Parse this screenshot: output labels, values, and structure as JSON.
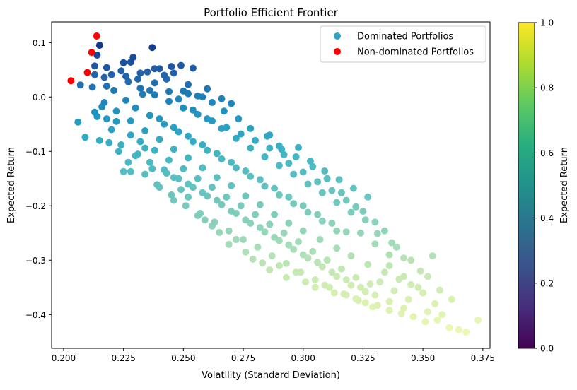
{
  "chart_data": {
    "type": "scatter",
    "title": "Portfolio Efficient Frontier",
    "xlabel": "Volatility (Standard Deviation)",
    "ylabel": "Expected Return",
    "xlim": [
      0.195,
      0.378
    ],
    "ylim": [
      -0.462,
      0.138
    ],
    "x_ticks": [
      0.2,
      0.225,
      0.25,
      0.275,
      0.3,
      0.325,
      0.35,
      0.375
    ],
    "x_tick_labels": [
      "0.200",
      "0.225",
      "0.250",
      "0.275",
      "0.300",
      "0.325",
      "0.350",
      "0.375"
    ],
    "y_ticks": [
      -0.4,
      -0.3,
      -0.2,
      -0.1,
      0.0,
      0.1
    ],
    "y_tick_labels": [
      "−0.4",
      "−0.3",
      "−0.2",
      "−0.1",
      "0.0",
      "0.1"
    ],
    "grid": false,
    "legend_placement": "top-right",
    "series": [
      {
        "name": "Dominated Portfolios",
        "legend_color": "#30a2c2",
        "colormap": "YlGnBu_r",
        "points": [
          [
            0.237,
            0.091
          ],
          [
            0.215,
            0.095
          ],
          [
            0.214,
            0.077
          ],
          [
            0.229,
            0.073
          ],
          [
            0.228,
            0.064
          ],
          [
            0.225,
            0.063
          ],
          [
            0.213,
            0.057
          ],
          [
            0.218,
            0.054
          ],
          [
            0.249,
            0.058
          ],
          [
            0.245,
            0.056
          ],
          [
            0.254,
            0.053
          ],
          [
            0.238,
            0.052
          ],
          [
            0.24,
            0.052
          ],
          [
            0.235,
            0.046
          ],
          [
            0.246,
            0.044
          ],
          [
            0.213,
            0.041
          ],
          [
            0.22,
            0.041
          ],
          [
            0.226,
            0.038
          ],
          [
            0.217,
            0.036
          ],
          [
            0.231,
            0.033
          ],
          [
            0.243,
            0.033
          ],
          [
            0.207,
            0.022
          ],
          [
            0.212,
            0.018
          ],
          [
            0.238,
            0.026
          ],
          [
            0.252,
            0.023
          ],
          [
            0.25,
            0.011
          ],
          [
            0.26,
            0.015
          ],
          [
            0.233,
            0.005
          ],
          [
            0.266,
            -0.003
          ],
          [
            0.27,
            -0.012
          ],
          [
            0.206,
            -0.046
          ],
          [
            0.209,
            -0.074
          ],
          [
            0.213,
            -0.028
          ],
          [
            0.214,
            -0.036
          ],
          [
            0.215,
            -0.08
          ],
          [
            0.218,
            -0.04
          ],
          [
            0.222,
            -0.045
          ],
          [
            0.223,
            -0.1
          ],
          [
            0.225,
            -0.137
          ],
          [
            0.227,
            -0.12
          ],
          [
            0.228,
            -0.137
          ],
          [
            0.231,
            -0.105
          ],
          [
            0.234,
            -0.142
          ],
          [
            0.237,
            -0.132
          ],
          [
            0.239,
            -0.161
          ],
          [
            0.243,
            -0.14
          ],
          [
            0.246,
            -0.19
          ],
          [
            0.249,
            -0.17
          ],
          [
            0.252,
            -0.184
          ],
          [
            0.256,
            -0.218
          ],
          [
            0.259,
            -0.226
          ],
          [
            0.262,
            -0.237
          ],
          [
            0.265,
            -0.249
          ],
          [
            0.269,
            -0.271
          ],
          [
            0.272,
            -0.262
          ],
          [
            0.276,
            -0.285
          ],
          [
            0.279,
            -0.298
          ],
          [
            0.283,
            -0.305
          ],
          [
            0.286,
            -0.318
          ],
          [
            0.29,
            -0.31
          ],
          [
            0.293,
            -0.332
          ],
          [
            0.297,
            -0.322
          ],
          [
            0.301,
            -0.34
          ],
          [
            0.305,
            -0.35
          ],
          [
            0.309,
            -0.346
          ],
          [
            0.313,
            -0.36
          ],
          [
            0.318,
            -0.364
          ],
          [
            0.322,
            -0.371
          ],
          [
            0.326,
            -0.378
          ],
          [
            0.331,
            -0.383
          ],
          [
            0.336,
            -0.392
          ],
          [
            0.341,
            -0.398
          ],
          [
            0.346,
            -0.404
          ],
          [
            0.351,
            -0.413
          ],
          [
            0.356,
            -0.41
          ],
          [
            0.361,
            -0.424
          ],
          [
            0.365,
            -0.428
          ],
          [
            0.368,
            -0.432
          ],
          [
            0.373,
            -0.41
          ],
          [
            0.355,
            -0.38
          ],
          [
            0.35,
            -0.36
          ],
          [
            0.345,
            -0.345
          ],
          [
            0.34,
            -0.335
          ],
          [
            0.334,
            -0.322
          ],
          [
            0.327,
            -0.308
          ],
          [
            0.32,
            -0.292
          ],
          [
            0.314,
            -0.278
          ],
          [
            0.307,
            -0.262
          ],
          [
            0.3,
            -0.246
          ],
          [
            0.294,
            -0.232
          ],
          [
            0.288,
            -0.216
          ],
          [
            0.282,
            -0.198
          ],
          [
            0.276,
            -0.182
          ],
          [
            0.27,
            -0.163
          ],
          [
            0.264,
            -0.148
          ],
          [
            0.258,
            -0.13
          ],
          [
            0.252,
            -0.112
          ],
          [
            0.246,
            -0.096
          ],
          [
            0.24,
            -0.078
          ],
          [
            0.234,
            -0.062
          ],
          [
            0.228,
            -0.044
          ],
          [
            0.222,
            -0.026
          ],
          [
            0.217,
            -0.01
          ],
          [
            0.221,
            0.012
          ],
          [
            0.227,
            0.028
          ],
          [
            0.232,
            0.016
          ],
          [
            0.238,
            0.004
          ],
          [
            0.244,
            -0.008
          ],
          [
            0.25,
            -0.02
          ],
          [
            0.256,
            -0.032
          ],
          [
            0.262,
            -0.044
          ],
          [
            0.268,
            -0.056
          ],
          [
            0.274,
            -0.068
          ],
          [
            0.28,
            -0.08
          ],
          [
            0.286,
            -0.094
          ],
          [
            0.292,
            -0.106
          ],
          [
            0.298,
            -0.093
          ],
          [
            0.304,
            -0.128
          ],
          [
            0.31,
            -0.15
          ],
          [
            0.316,
            -0.176
          ],
          [
            0.322,
            -0.202
          ],
          [
            0.326,
            -0.226
          ],
          [
            0.331,
            -0.251
          ],
          [
            0.337,
            -0.268
          ],
          [
            0.342,
            -0.296
          ],
          [
            0.349,
            -0.32
          ],
          [
            0.354,
            -0.292
          ],
          [
            0.246,
            -0.148
          ],
          [
            0.252,
            -0.16
          ],
          [
            0.258,
            -0.176
          ],
          [
            0.264,
            -0.19
          ],
          [
            0.27,
            -0.21
          ],
          [
            0.276,
            -0.226
          ],
          [
            0.282,
            -0.24
          ],
          [
            0.288,
            -0.258
          ],
          [
            0.294,
            -0.272
          ],
          [
            0.3,
            -0.29
          ],
          [
            0.306,
            -0.304
          ],
          [
            0.312,
            -0.322
          ],
          [
            0.318,
            -0.336
          ],
          [
            0.324,
            -0.35
          ],
          [
            0.33,
            -0.364
          ],
          [
            0.336,
            -0.376
          ],
          [
            0.342,
            -0.388
          ],
          [
            0.232,
            -0.082
          ],
          [
            0.238,
            -0.098
          ],
          [
            0.244,
            -0.116
          ],
          [
            0.25,
            -0.132
          ],
          [
            0.256,
            -0.15
          ],
          [
            0.262,
            -0.166
          ],
          [
            0.268,
            -0.184
          ],
          [
            0.274,
            -0.2
          ],
          [
            0.28,
            -0.216
          ],
          [
            0.286,
            -0.234
          ],
          [
            0.292,
            -0.25
          ],
          [
            0.298,
            -0.266
          ],
          [
            0.304,
            -0.284
          ],
          [
            0.31,
            -0.3
          ],
          [
            0.316,
            -0.316
          ],
          [
            0.322,
            -0.332
          ],
          [
            0.328,
            -0.344
          ],
          [
            0.24,
            -0.04
          ],
          [
            0.246,
            -0.056
          ],
          [
            0.252,
            -0.072
          ],
          [
            0.258,
            -0.088
          ],
          [
            0.264,
            -0.104
          ],
          [
            0.27,
            -0.12
          ],
          [
            0.276,
            -0.136
          ],
          [
            0.282,
            -0.152
          ],
          [
            0.288,
            -0.168
          ],
          [
            0.294,
            -0.184
          ],
          [
            0.3,
            -0.2
          ],
          [
            0.306,
            -0.216
          ],
          [
            0.312,
            -0.232
          ],
          [
            0.318,
            -0.248
          ],
          [
            0.248,
            -0.004
          ],
          [
            0.254,
            -0.024
          ],
          [
            0.26,
            -0.04
          ],
          [
            0.266,
            -0.058
          ],
          [
            0.272,
            -0.076
          ],
          [
            0.278,
            -0.094
          ],
          [
            0.284,
            -0.11
          ],
          [
            0.29,
            -0.126
          ],
          [
            0.296,
            -0.142
          ],
          [
            0.302,
            -0.16
          ],
          [
            0.308,
            -0.176
          ],
          [
            0.314,
            -0.194
          ],
          [
            0.32,
            -0.212
          ],
          [
            0.226,
            -0.006
          ],
          [
            0.23,
            -0.02
          ],
          [
            0.236,
            -0.034
          ],
          [
            0.242,
            -0.05
          ],
          [
            0.248,
            -0.064
          ],
          [
            0.254,
            -0.082
          ],
          [
            0.26,
            -0.098
          ],
          [
            0.266,
            -0.114
          ],
          [
            0.272,
            -0.13
          ],
          [
            0.278,
            -0.146
          ],
          [
            0.284,
            -0.164
          ],
          [
            0.29,
            -0.18
          ],
          [
            0.296,
            -0.196
          ],
          [
            0.302,
            -0.212
          ],
          [
            0.308,
            -0.228
          ],
          [
            0.314,
            -0.246
          ],
          [
            0.236,
            -0.12
          ],
          [
            0.242,
            -0.134
          ],
          [
            0.248,
            -0.15
          ],
          [
            0.254,
            -0.166
          ],
          [
            0.26,
            -0.182
          ],
          [
            0.266,
            -0.198
          ],
          [
            0.272,
            -0.214
          ],
          [
            0.278,
            -0.232
          ],
          [
            0.284,
            -0.248
          ],
          [
            0.29,
            -0.264
          ],
          [
            0.296,
            -0.28
          ],
          [
            0.302,
            -0.296
          ],
          [
            0.308,
            -0.312
          ],
          [
            0.314,
            -0.33
          ],
          [
            0.32,
            -0.346
          ],
          [
            0.326,
            -0.358
          ],
          [
            0.29,
            -0.09
          ],
          [
            0.285,
            -0.072
          ],
          [
            0.278,
            -0.058
          ],
          [
            0.273,
            -0.04
          ],
          [
            0.267,
            -0.026
          ],
          [
            0.262,
            -0.01
          ],
          [
            0.256,
            0.002
          ],
          [
            0.294,
            -0.122
          ],
          [
            0.3,
            -0.138
          ],
          [
            0.306,
            -0.156
          ],
          [
            0.312,
            -0.172
          ],
          [
            0.318,
            -0.19
          ],
          [
            0.324,
            -0.25
          ],
          [
            0.33,
            -0.27
          ],
          [
            0.336,
            -0.29
          ],
          [
            0.33,
            -0.23
          ],
          [
            0.336,
            -0.31
          ],
          [
            0.342,
            -0.33
          ],
          [
            0.348,
            -0.35
          ],
          [
            0.352,
            -0.395
          ],
          [
            0.358,
            -0.4
          ],
          [
            0.344,
            -0.372
          ],
          [
            0.338,
            -0.356
          ],
          [
            0.332,
            -0.34
          ],
          [
            0.245,
            -0.18
          ],
          [
            0.24,
            -0.166
          ],
          [
            0.251,
            -0.2
          ],
          [
            0.257,
            -0.214
          ],
          [
            0.263,
            -0.23
          ],
          [
            0.269,
            -0.246
          ],
          [
            0.275,
            -0.262
          ],
          [
            0.281,
            -0.276
          ],
          [
            0.287,
            -0.292
          ],
          [
            0.293,
            -0.306
          ],
          [
            0.299,
            -0.322
          ],
          [
            0.305,
            -0.336
          ],
          [
            0.311,
            -0.35
          ],
          [
            0.317,
            -0.362
          ],
          [
            0.323,
            -0.374
          ],
          [
            0.329,
            -0.386
          ],
          [
            0.228,
            -0.07
          ],
          [
            0.234,
            -0.094
          ],
          [
            0.23,
            -0.108
          ],
          [
            0.224,
            -0.088
          ],
          [
            0.22,
            -0.06
          ],
          [
            0.219,
            -0.084
          ],
          [
            0.216,
            -0.018
          ],
          [
            0.218,
            0.02
          ],
          [
            0.224,
            0.048
          ],
          [
            0.232,
            0.044
          ],
          [
            0.242,
            0.04
          ],
          [
            0.236,
            0.012
          ],
          [
            0.244,
            0.01
          ],
          [
            0.252,
            0.006
          ],
          [
            0.258,
            0.0
          ],
          [
            0.286,
            -0.07
          ],
          [
            0.291,
            -0.096
          ],
          [
            0.297,
            -0.11
          ],
          [
            0.303,
            -0.118
          ],
          [
            0.309,
            -0.136
          ],
          [
            0.315,
            -0.152
          ],
          [
            0.321,
            -0.168
          ],
          [
            0.327,
            -0.184
          ],
          [
            0.325,
            -0.21
          ],
          [
            0.334,
            -0.246
          ],
          [
            0.339,
            -0.276
          ],
          [
            0.345,
            -0.3
          ],
          [
            0.352,
            -0.33
          ],
          [
            0.357,
            -0.355
          ],
          [
            0.362,
            -0.372
          ]
        ]
      },
      {
        "name": "Non-dominated Portfolios",
        "color": "#ff0000",
        "points": [
          [
            0.2031,
            0.03
          ],
          [
            0.2099,
            0.045
          ],
          [
            0.2117,
            0.082
          ],
          [
            0.2138,
            0.112
          ]
        ]
      }
    ],
    "colorbar": {
      "label": "Expected Return",
      "range": [
        0.0,
        1.0
      ],
      "ticks": [
        0.0,
        0.2,
        0.4,
        0.6,
        0.8,
        1.0
      ],
      "tick_labels": [
        "0.0",
        "0.2",
        "0.4",
        "0.6",
        "0.8",
        "1.0"
      ],
      "colormap": "viridis"
    }
  }
}
